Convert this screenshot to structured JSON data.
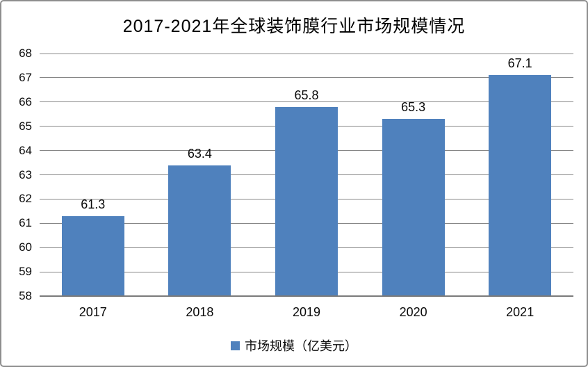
{
  "chart_data": {
    "type": "bar",
    "title": "2017-2021年全球装饰膜行业市场规模情况",
    "categories": [
      "2017",
      "2018",
      "2019",
      "2020",
      "2021"
    ],
    "series": [
      {
        "name": "市场规模（亿美元）",
        "values": [
          61.3,
          63.4,
          65.8,
          65.3,
          67.1
        ]
      }
    ],
    "value_labels": [
      "61.3",
      "63.4",
      "65.8",
      "65.3",
      "67.1"
    ],
    "xlabel": "",
    "ylabel": "",
    "ylim": [
      58,
      68
    ],
    "ytick_step": 1,
    "ytick_labels": [
      "58",
      "59",
      "60",
      "61",
      "62",
      "63",
      "64",
      "65",
      "66",
      "67",
      "68"
    ],
    "grid": true,
    "legend_position": "bottom",
    "colors": {
      "bar": "#4F81BD",
      "gridline": "#868686",
      "axis_line": "#7a7a7a",
      "text": "#0a0a0a",
      "frame_border": "#8e8e8e",
      "background": "#ffffff"
    }
  }
}
